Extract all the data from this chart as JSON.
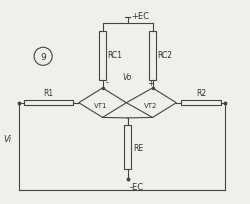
{
  "bg_color": "#f0f0eb",
  "line_color": "#444444",
  "text_color": "#333333",
  "fig_width": 2.5,
  "fig_height": 2.05,
  "dpi": 100,
  "labels": {
    "ec_top": "+EC",
    "ec_bot": "-EC",
    "rc1": "RC1",
    "rc2": "RC2",
    "r1": "R1",
    "r2": "R2",
    "re": "RE",
    "vt1": "VT1",
    "vt2": "VT2",
    "vo": "Vo",
    "vi": "Vi",
    "circ9": "9",
    "minus": "-",
    "plus": "+"
  },
  "xlim": [
    0,
    10
  ],
  "ylim": [
    0,
    8.5
  ]
}
